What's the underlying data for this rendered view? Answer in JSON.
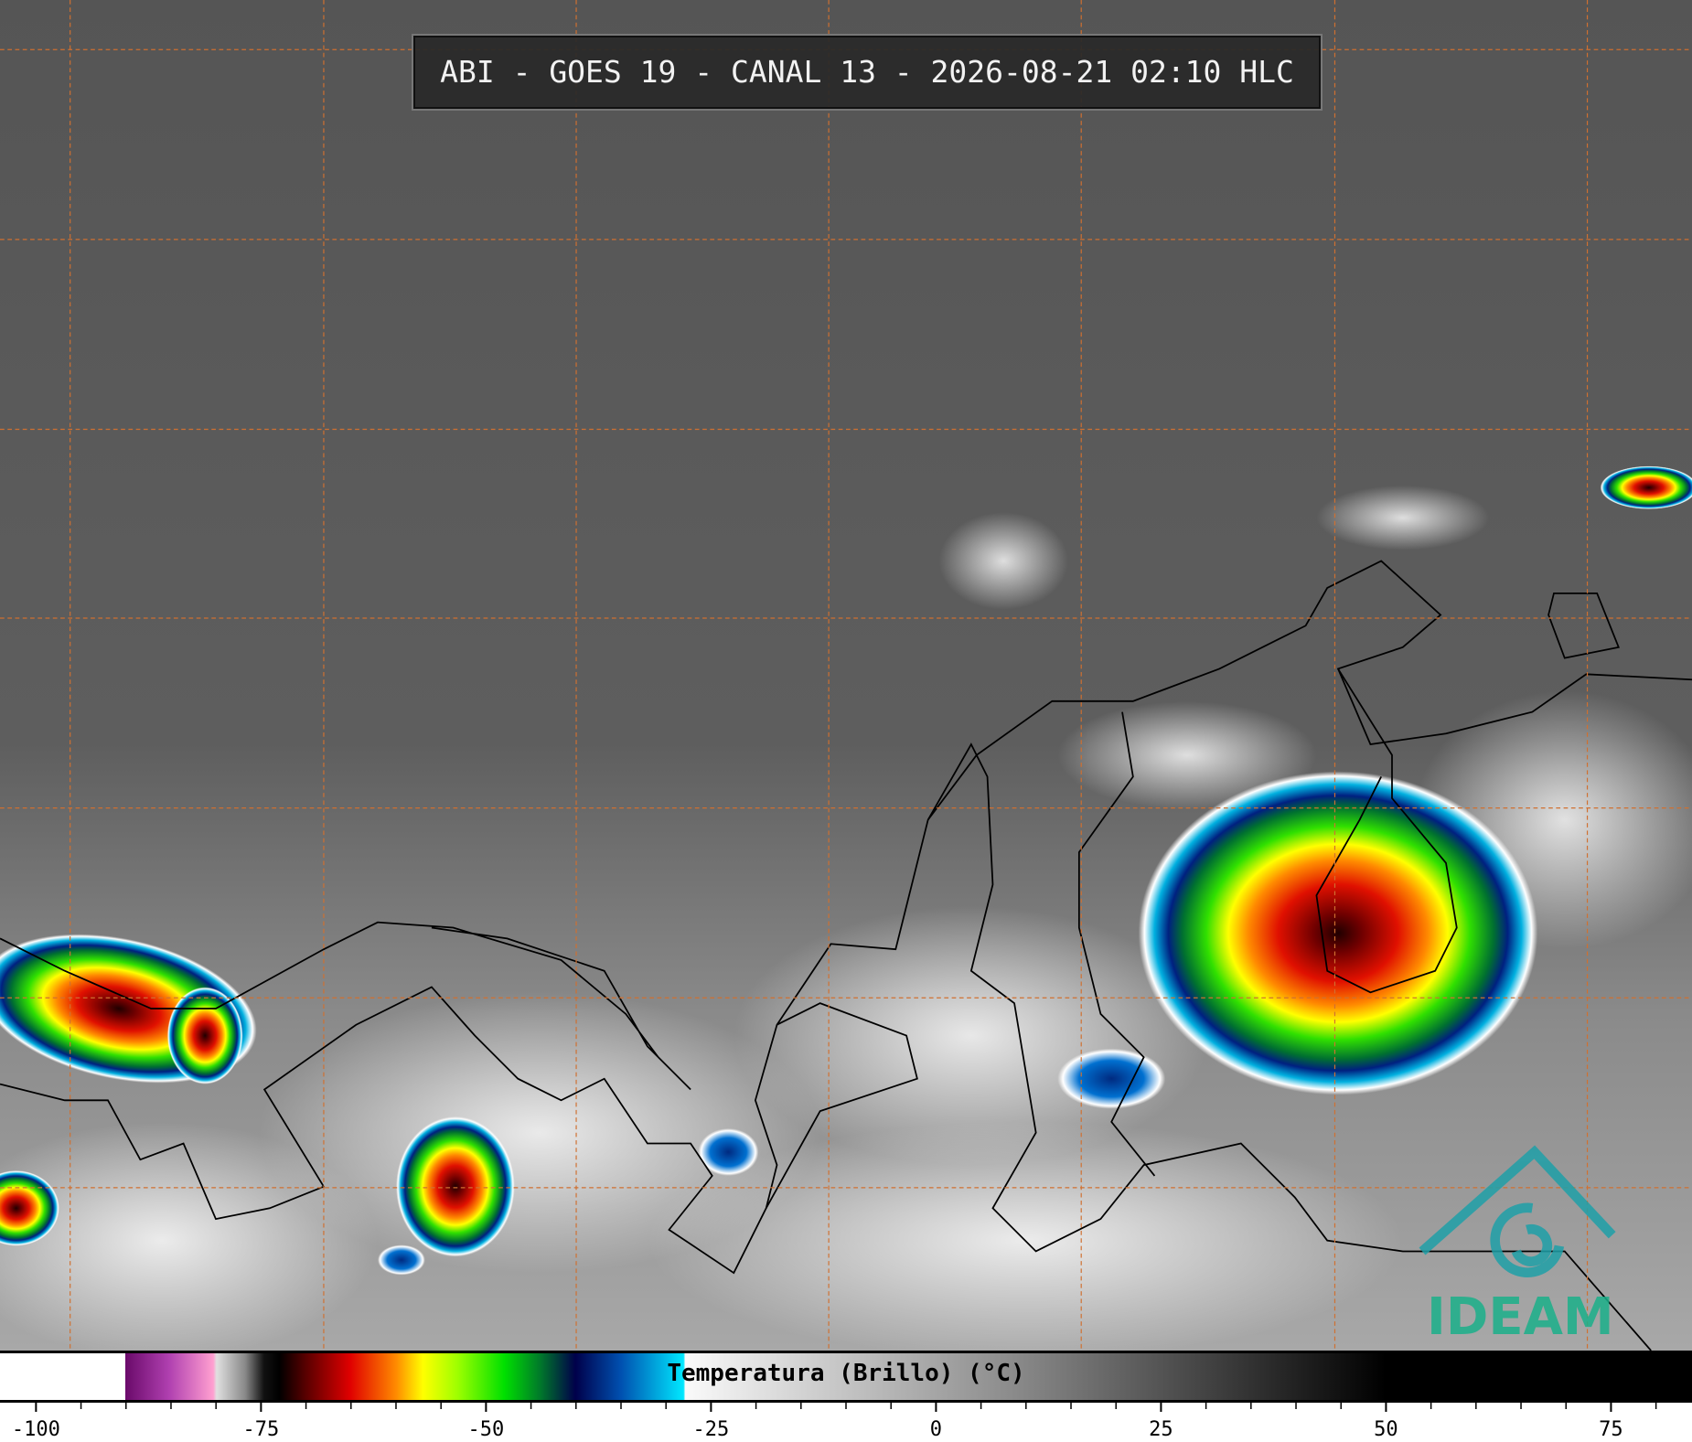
{
  "header": {
    "title": "ABI - GOES 19 - CANAL 13 - 2026-08-21 02:10 HLC"
  },
  "colorbar": {
    "label": "Temperatura (Brillo) (°C)",
    "lim": [
      -104,
      84
    ],
    "ticks": [
      -100,
      -75,
      -50,
      -25,
      0,
      25,
      50,
      75
    ],
    "minor_ticks": [
      -95,
      -90,
      -85,
      -80,
      -70,
      -65,
      -60,
      -55,
      -45,
      -40,
      -35,
      -30,
      -20,
      -15,
      -10,
      -5,
      5,
      10,
      15,
      20,
      30,
      35,
      40,
      45,
      55,
      60,
      65,
      70,
      80
    ]
  },
  "logo": {
    "text": "IDEAM"
  }
}
